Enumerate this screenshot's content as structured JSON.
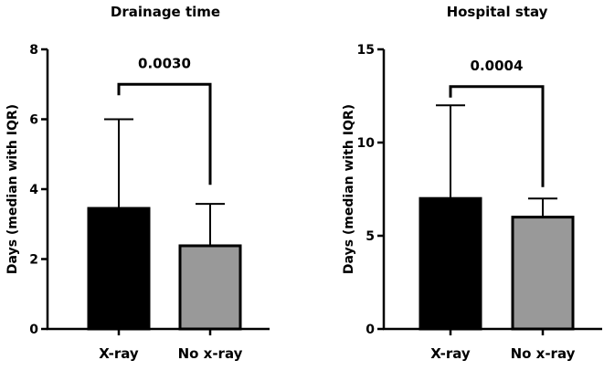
{
  "chart_data": [
    {
      "type": "bar",
      "title": "Drainage time",
      "xlabel": "",
      "ylabel": "Days (median with IQR)",
      "ylim": [
        0,
        8
      ],
      "yticks": [
        0,
        2,
        4,
        6,
        8
      ],
      "categories": [
        "X-ray",
        "No x-ray"
      ],
      "values": [
        3.45,
        2.38
      ],
      "error_upper": [
        6.0,
        3.58
      ],
      "bar_colors": [
        "#000000",
        "#999999"
      ],
      "annotation": {
        "text": "0.0030",
        "level": 7.0
      }
    },
    {
      "type": "bar",
      "title": "Hospital stay",
      "xlabel": "",
      "ylabel": "Days (median with IQR)",
      "ylim": [
        0,
        15
      ],
      "yticks": [
        0,
        5,
        10,
        15
      ],
      "categories": [
        "X-ray",
        "No x-ray"
      ],
      "values": [
        7.0,
        6.0
      ],
      "error_upper": [
        12.0,
        7.0
      ],
      "bar_colors": [
        "#000000",
        "#999999"
      ],
      "annotation": {
        "text": "0.0004",
        "level": 13.0
      }
    }
  ]
}
